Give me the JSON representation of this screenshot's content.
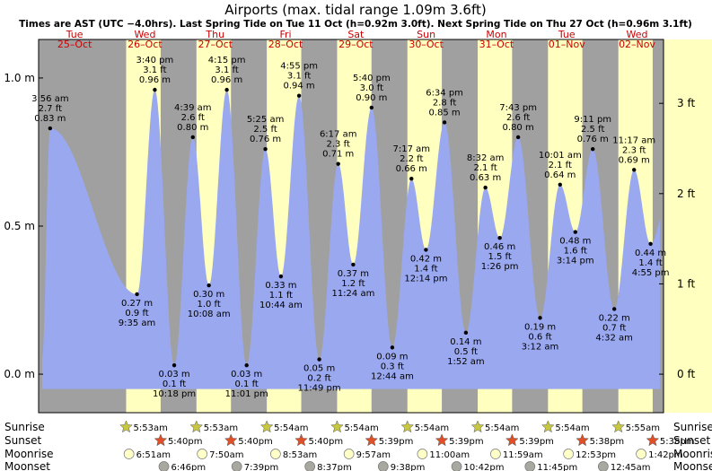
{
  "chart_data": {
    "type": "area",
    "title": "Airports (max. tidal range 1.09m 3.6ft)",
    "subtitle": "Times are AST (UTC −4.0hrs). Last Spring Tide on Tue 11 Oct (h=0.92m 3.0ft). Next Spring Tide on Thu 27 Oct (h=0.96m 3.1ft)",
    "xlabel": "",
    "ylabel_left": "m",
    "ylabel_right": "ft",
    "ylim": [
      -0.13,
      1.13
    ],
    "left_ticks": [
      {
        "v": 0.0,
        "label": "0.0 m"
      },
      {
        "v": 0.5,
        "label": "0.5 m"
      },
      {
        "v": 1.0,
        "label": "1.0 m"
      }
    ],
    "right_ticks": [
      {
        "v": 0.0,
        "label": "0 ft"
      },
      {
        "v": 0.3048,
        "label": "1 ft"
      },
      {
        "v": 0.6096,
        "label": "2 ft"
      },
      {
        "v": 0.9144,
        "label": "3 ft"
      }
    ],
    "days": [
      {
        "dow": "Tue",
        "date": "25–Oct",
        "sunrise": "",
        "sunset": "",
        "moonrise": "",
        "moonset": ""
      },
      {
        "dow": "Wed",
        "date": "26–Oct",
        "sunrise": "5:53am",
        "sunset": "5:40pm",
        "moonrise": "6:51am",
        "moonset": "6:46pm"
      },
      {
        "dow": "Thu",
        "date": "27–Oct",
        "sunrise": "5:53am",
        "sunset": "5:40pm",
        "moonrise": "7:50am",
        "moonset": "7:39pm"
      },
      {
        "dow": "Fri",
        "date": "28–Oct",
        "sunrise": "5:54am",
        "sunset": "5:40pm",
        "moonrise": "8:53am",
        "moonset": "8:37pm"
      },
      {
        "dow": "Sat",
        "date": "29–Oct",
        "sunrise": "5:54am",
        "sunset": "5:39pm",
        "moonrise": "9:57am",
        "moonset": "9:38pm"
      },
      {
        "dow": "Sun",
        "date": "30–Oct",
        "sunrise": "5:54am",
        "sunset": "5:39pm",
        "moonrise": "11:00am",
        "moonset": "10:42pm"
      },
      {
        "dow": "Mon",
        "date": "31–Oct",
        "sunrise": "5:54am",
        "sunset": "5:39pm",
        "moonrise": "11:59am",
        "moonset": "11:45pm"
      },
      {
        "dow": "Tue",
        "date": "01–Nov",
        "sunrise": "5:54am",
        "sunset": "5:38pm",
        "moonrise": "12:53pm",
        "moonset": ""
      },
      {
        "dow": "Wed",
        "date": "02–Nov",
        "sunrise": "5:55am",
        "sunset": "5:38pm",
        "moonrise": "1:42pm",
        "moonset": "12:45am"
      }
    ],
    "tides": [
      {
        "day": 0,
        "time": "3:56 am",
        "h": 0.83,
        "ft": "2.7 ft",
        "type": "high"
      },
      {
        "day": 1,
        "time": "9:35 am",
        "h": 0.27,
        "ft": "0.9 ft",
        "type": "low"
      },
      {
        "day": 1,
        "time": "3:40 pm",
        "h": 0.96,
        "ft": "3.1 ft",
        "type": "high"
      },
      {
        "day": 1,
        "time": "10:18 pm",
        "h": 0.03,
        "ft": "0.1 ft",
        "type": "low"
      },
      {
        "day": 2,
        "time": "4:39 am",
        "h": 0.8,
        "ft": "2.6 ft",
        "type": "high"
      },
      {
        "day": 2,
        "time": "10:08 am",
        "h": 0.3,
        "ft": "1.0 ft",
        "type": "low"
      },
      {
        "day": 2,
        "time": "4:15 pm",
        "h": 0.96,
        "ft": "3.1 ft",
        "type": "high"
      },
      {
        "day": 2,
        "time": "11:01 pm",
        "h": 0.03,
        "ft": "0.1 ft",
        "type": "low"
      },
      {
        "day": 3,
        "time": "5:25 am",
        "h": 0.76,
        "ft": "2.5 ft",
        "type": "high"
      },
      {
        "day": 3,
        "time": "10:44 am",
        "h": 0.33,
        "ft": "1.1 ft",
        "type": "low"
      },
      {
        "day": 3,
        "time": "4:55 pm",
        "h": 0.94,
        "ft": "3.1 ft",
        "type": "high"
      },
      {
        "day": 3,
        "time": "11:49 pm",
        "h": 0.05,
        "ft": "0.2 ft",
        "type": "low"
      },
      {
        "day": 4,
        "time": "6:17 am",
        "h": 0.71,
        "ft": "2.3 ft",
        "type": "high"
      },
      {
        "day": 4,
        "time": "11:24 am",
        "h": 0.37,
        "ft": "1.2 ft",
        "type": "low"
      },
      {
        "day": 4,
        "time": "5:40 pm",
        "h": 0.9,
        "ft": "3.0 ft",
        "type": "high"
      },
      {
        "day": 5,
        "time": "12:44 am",
        "h": 0.09,
        "ft": "0.3 ft",
        "type": "low"
      },
      {
        "day": 5,
        "time": "7:17 am",
        "h": 0.66,
        "ft": "2.2 ft",
        "type": "high"
      },
      {
        "day": 5,
        "time": "12:14 pm",
        "h": 0.42,
        "ft": "1.4 ft",
        "type": "low"
      },
      {
        "day": 5,
        "time": "6:34 pm",
        "h": 0.85,
        "ft": "2.8 ft",
        "type": "high"
      },
      {
        "day": 6,
        "time": "1:52 am",
        "h": 0.14,
        "ft": "0.5 ft",
        "type": "low"
      },
      {
        "day": 6,
        "time": "8:32 am",
        "h": 0.63,
        "ft": "2.1 ft",
        "type": "high"
      },
      {
        "day": 6,
        "time": "1:26 pm",
        "h": 0.46,
        "ft": "1.5 ft",
        "type": "low"
      },
      {
        "day": 6,
        "time": "7:43 pm",
        "h": 0.8,
        "ft": "2.6 ft",
        "type": "high"
      },
      {
        "day": 7,
        "time": "3:12 am",
        "h": 0.19,
        "ft": "0.6 ft",
        "type": "low"
      },
      {
        "day": 7,
        "time": "10:01 am",
        "h": 0.64,
        "ft": "2.1 ft",
        "type": "high"
      },
      {
        "day": 7,
        "time": "3:14 pm",
        "h": 0.48,
        "ft": "1.6 ft",
        "type": "low"
      },
      {
        "day": 7,
        "time": "9:11 pm",
        "h": 0.76,
        "ft": "2.5 ft",
        "type": "high"
      },
      {
        "day": 8,
        "time": "4:32 am",
        "h": 0.22,
        "ft": "0.7 ft",
        "type": "low"
      },
      {
        "day": 8,
        "time": "11:17 am",
        "h": 0.69,
        "ft": "2.3 ft",
        "type": "high"
      },
      {
        "day": 8,
        "time": "4:55 pm",
        "h": 0.44,
        "ft": "1.4 ft",
        "type": "low"
      }
    ],
    "row_labels": {
      "sunrise": "Sunrise",
      "sunset": "Sunset",
      "moonrise": "Moonrise",
      "moonset": "Moonset"
    },
    "colors": {
      "night": "#a0a0a0",
      "day": "#ffffc0",
      "tide": "#9aa8f0",
      "text_day": "#cc0000",
      "sun": "#c8c840",
      "sunset": "#e05028",
      "moonrise": "#ffffc8",
      "moonset": "#a8a8a0"
    }
  }
}
